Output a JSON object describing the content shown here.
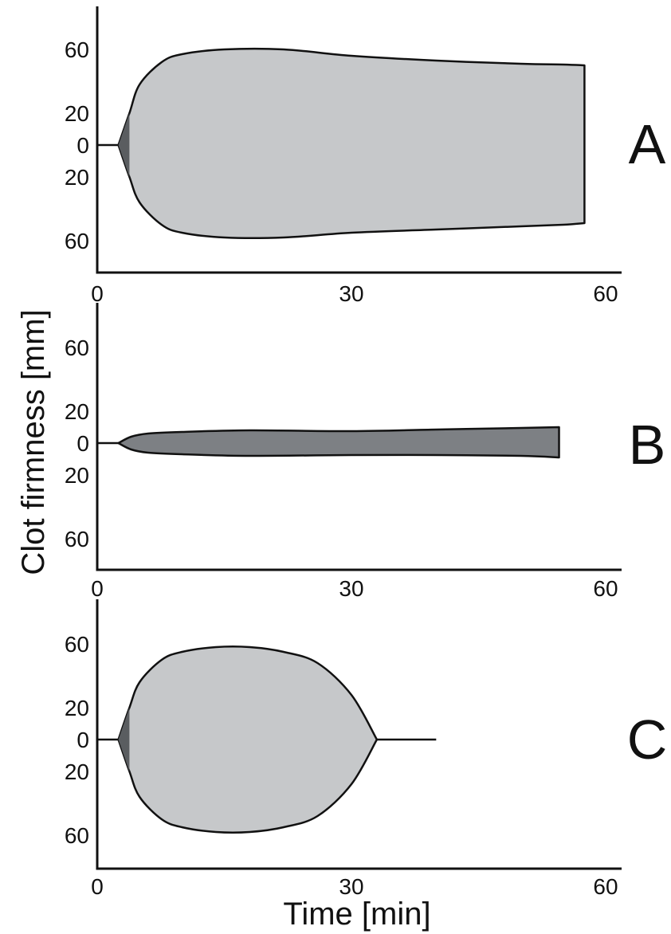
{
  "chart_data": {
    "type": "area",
    "description_free": true,
    "ylabel": "Clot firmness [mm]",
    "xlabel": "Time [min]",
    "xlim": [
      0,
      60
    ],
    "x_ticks": [
      "0",
      "30",
      "60"
    ],
    "y_ticks": [
      "60",
      "20",
      "0",
      "20",
      "60"
    ],
    "y_tick_values": [
      60,
      20,
      0,
      -20,
      -60
    ],
    "colors": {
      "clot_fill": "#c6c8ca",
      "early_fill": "#5a5d60",
      "weak_fill": "#7d8084",
      "line": "#111111"
    },
    "panels": [
      {
        "label": "A",
        "baseline": [
          [
            0,
            0
          ],
          [
            2.5,
            0
          ]
        ],
        "early_segment": {
          "x_start": 2.5,
          "x_end": 3.8,
          "amplitude_end": 20
        },
        "upper": [
          [
            2.5,
            0
          ],
          [
            3.8,
            20
          ],
          [
            5,
            38
          ],
          [
            7.6,
            52
          ],
          [
            10,
            57
          ],
          [
            15,
            60
          ],
          [
            22,
            60
          ],
          [
            30,
            56
          ],
          [
            40,
            53
          ],
          [
            50,
            51
          ],
          [
            55,
            50.5
          ],
          [
            57.5,
            50
          ]
        ],
        "lower": [
          [
            2.5,
            0
          ],
          [
            3.8,
            -20
          ],
          [
            5,
            -36
          ],
          [
            7.6,
            -50
          ],
          [
            10,
            -55
          ],
          [
            15,
            -58
          ],
          [
            22,
            -58
          ],
          [
            30,
            -55
          ],
          [
            40,
            -53
          ],
          [
            50,
            -51
          ],
          [
            55,
            -50
          ],
          [
            57.5,
            -49
          ]
        ]
      },
      {
        "label": "B",
        "baseline": [
          [
            0,
            0
          ],
          [
            2.5,
            0
          ]
        ],
        "upper": [
          [
            2.5,
            0
          ],
          [
            4,
            4
          ],
          [
            6,
            6
          ],
          [
            10,
            7
          ],
          [
            18,
            8
          ],
          [
            30,
            7.5
          ],
          [
            40,
            8.5
          ],
          [
            50,
            9.5
          ],
          [
            54.5,
            10
          ]
        ],
        "lower": [
          [
            2.5,
            0
          ],
          [
            4,
            -4
          ],
          [
            6,
            -6
          ],
          [
            10,
            -7
          ],
          [
            18,
            -8
          ],
          [
            30,
            -7.5
          ],
          [
            40,
            -7.5
          ],
          [
            50,
            -8
          ],
          [
            54.5,
            -9
          ]
        ]
      },
      {
        "label": "C",
        "baseline": [
          [
            0,
            0
          ],
          [
            2.5,
            0
          ]
        ],
        "early_segment": {
          "x_start": 2.5,
          "x_end": 3.8,
          "amplitude_end": 20
        },
        "upper": [
          [
            2.5,
            0
          ],
          [
            3.8,
            20
          ],
          [
            5,
            36
          ],
          [
            7.6,
            50
          ],
          [
            10,
            55
          ],
          [
            14,
            58
          ],
          [
            18,
            58
          ],
          [
            22,
            55
          ],
          [
            26,
            48
          ],
          [
            30,
            28
          ],
          [
            33,
            0
          ]
        ],
        "lower": [
          [
            2.5,
            0
          ],
          [
            3.8,
            -20
          ],
          [
            5,
            -36
          ],
          [
            7.6,
            -50
          ],
          [
            10,
            -55
          ],
          [
            14,
            -58
          ],
          [
            18,
            -58
          ],
          [
            22,
            -55
          ],
          [
            26,
            -48
          ],
          [
            30,
            -28
          ],
          [
            33,
            0
          ]
        ],
        "tail": [
          [
            33,
            0
          ],
          [
            40,
            0
          ]
        ]
      }
    ]
  }
}
